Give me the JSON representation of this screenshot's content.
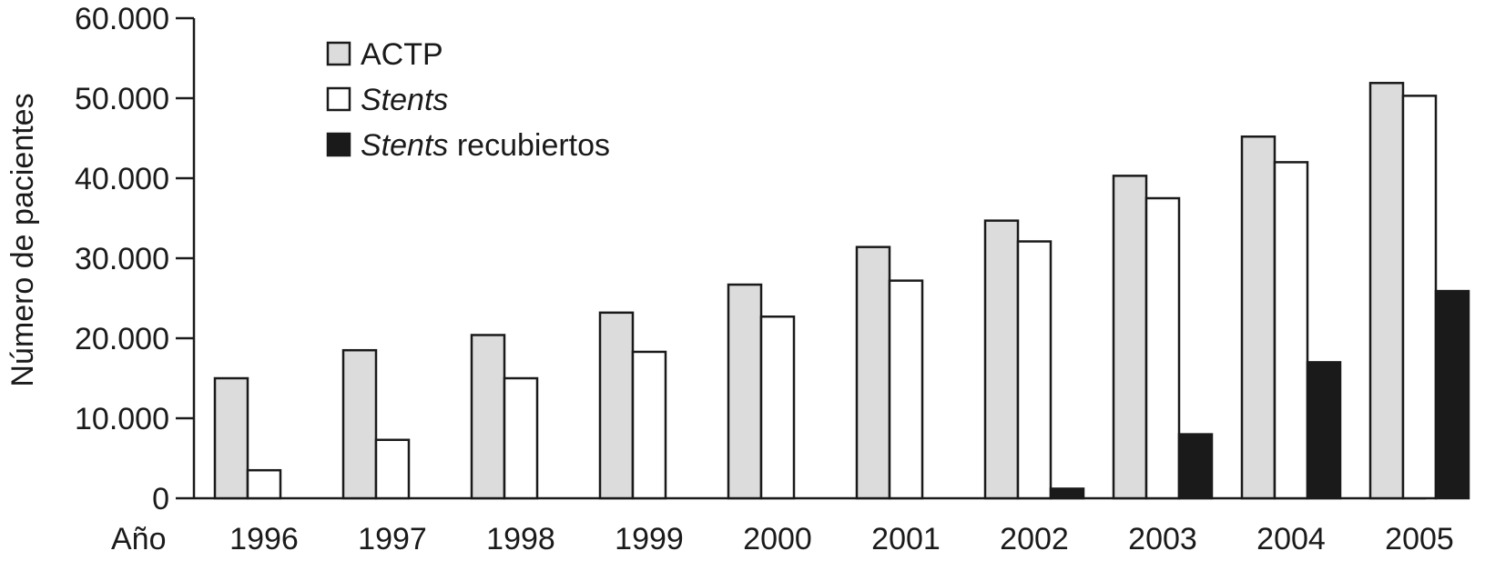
{
  "chart_data": {
    "type": "bar",
    "ylabel": "Número de pacientes",
    "xlabel": "Año",
    "categories": [
      "1996",
      "1997",
      "1998",
      "1999",
      "2000",
      "2001",
      "2002",
      "2003",
      "2004",
      "2005"
    ],
    "ylim": [
      0,
      60000
    ],
    "yticks": [
      {
        "value": 0,
        "label": "0"
      },
      {
        "value": 10000,
        "label": "10.000"
      },
      {
        "value": 20000,
        "label": "20.000"
      },
      {
        "value": 30000,
        "label": "30.000"
      },
      {
        "value": 40000,
        "label": "40.000"
      },
      {
        "value": 50000,
        "label": "50.000"
      },
      {
        "value": 60000,
        "label": "60.000"
      }
    ],
    "grid": false,
    "legend_position": "top-left",
    "series": [
      {
        "name": "ACTP",
        "name_italic": "",
        "name_rest": "ACTP",
        "color": "#dcdcdc",
        "values": [
          15000,
          18500,
          20400,
          23200,
          26700,
          31400,
          34700,
          40300,
          45200,
          51900
        ]
      },
      {
        "name": "Stents",
        "name_italic": "Stents",
        "name_rest": "",
        "color": "#ffffff",
        "values": [
          3500,
          7300,
          15000,
          18300,
          22700,
          27200,
          32100,
          37500,
          42000,
          50300
        ]
      },
      {
        "name": "Stents recubiertos",
        "name_italic": "Stents",
        "name_rest": " recubiertos",
        "color": "#1a1a1a",
        "values": [
          0,
          0,
          0,
          0,
          0,
          0,
          1200,
          8000,
          17000,
          25900
        ]
      }
    ]
  }
}
